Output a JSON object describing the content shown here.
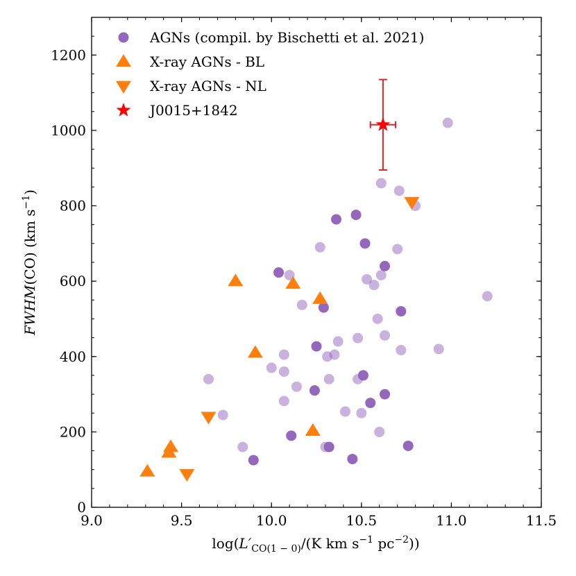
{
  "chart_data": {
    "type": "scatter",
    "title": "",
    "xlabel": "log(L′CO(1−0)/(K km s−1 pc−2))",
    "ylabel": "FWHM(CO) (km s−1)",
    "xlim": [
      9.0,
      11.5
    ],
    "ylim": [
      0,
      1300
    ],
    "x_ticks": [
      "9.0",
      "9.5",
      "10.0",
      "10.5",
      "11.0",
      "11.5"
    ],
    "y_ticks": [
      "0",
      "200",
      "400",
      "600",
      "800",
      "1000",
      "1200"
    ],
    "legend_position": "top-left",
    "series": [
      {
        "name": "AGNs (compil. by Bischetti et al. 2021)",
        "marker": "circle",
        "color": "#9467bd",
        "points_solid": [
          [
            9.9,
            125
          ],
          [
            10.04,
            623
          ],
          [
            10.11,
            190
          ],
          [
            10.24,
            310
          ],
          [
            10.25,
            427
          ],
          [
            10.29,
            530
          ],
          [
            10.32,
            160
          ],
          [
            10.36,
            764
          ],
          [
            10.45,
            128
          ],
          [
            10.47,
            776
          ],
          [
            10.51,
            350
          ],
          [
            10.52,
            700
          ],
          [
            10.55,
            277
          ],
          [
            10.63,
            640
          ],
          [
            10.63,
            300
          ],
          [
            10.72,
            520
          ],
          [
            10.76,
            163
          ]
        ],
        "points_faint": [
          [
            9.65,
            340
          ],
          [
            9.73,
            245
          ],
          [
            9.84,
            160
          ],
          [
            10.0,
            370
          ],
          [
            10.07,
            405
          ],
          [
            10.07,
            360
          ],
          [
            10.07,
            282
          ],
          [
            10.1,
            616
          ],
          [
            10.14,
            320
          ],
          [
            10.17,
            537
          ],
          [
            10.27,
            690
          ],
          [
            10.3,
            160
          ],
          [
            10.31,
            400
          ],
          [
            10.32,
            340
          ],
          [
            10.35,
            405
          ],
          [
            10.37,
            440
          ],
          [
            10.41,
            254
          ],
          [
            10.48,
            449
          ],
          [
            10.48,
            340
          ],
          [
            10.5,
            250
          ],
          [
            10.53,
            605
          ],
          [
            10.57,
            590
          ],
          [
            10.59,
            500
          ],
          [
            10.6,
            200
          ],
          [
            10.61,
            616
          ],
          [
            10.61,
            860
          ],
          [
            10.63,
            456
          ],
          [
            10.7,
            685
          ],
          [
            10.71,
            840
          ],
          [
            10.72,
            417
          ],
          [
            10.8,
            800
          ],
          [
            10.93,
            420
          ],
          [
            10.98,
            1020
          ],
          [
            11.2,
            560
          ]
        ]
      },
      {
        "name": "X-ray AGNs - BL",
        "marker": "triangle-up",
        "color": "#ff7f0e",
        "points": [
          [
            9.31,
            95
          ],
          [
            9.43,
            145
          ],
          [
            9.44,
            160
          ],
          [
            9.8,
            600
          ],
          [
            9.91,
            410
          ],
          [
            10.12,
            593
          ],
          [
            10.23,
            203
          ],
          [
            10.27,
            553
          ]
        ]
      },
      {
        "name": "X-ray AGNs - NL",
        "marker": "triangle-down",
        "color": "#ff7f0e",
        "points": [
          [
            9.53,
            88
          ],
          [
            9.65,
            240
          ],
          [
            10.78,
            810
          ]
        ]
      },
      {
        "name": "J0015+1842",
        "marker": "star",
        "color": "#ff0000",
        "points": [
          [
            10.62,
            1015
          ]
        ],
        "error_color": "#d62728",
        "x_err": 0.07,
        "y_err": 120
      }
    ]
  }
}
